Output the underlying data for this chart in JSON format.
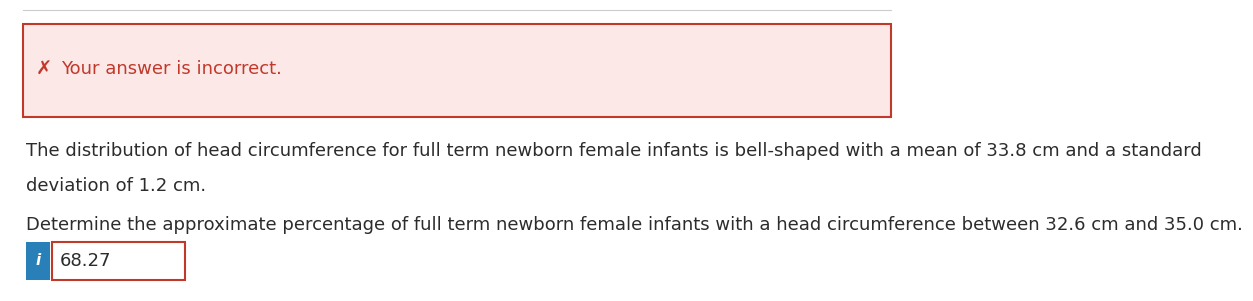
{
  "error_box_bg": "#fde8e8",
  "error_box_border": "#c0392b",
  "error_icon": "✗",
  "error_icon_color": "#c0392b",
  "error_text": "Your answer is incorrect.",
  "error_text_color": "#c0392b",
  "body_text_line1": "The distribution of head circumference for full term newborn female infants is bell-shaped with a mean of 33.8 cm and a standard",
  "body_text_line2": "deviation of 1.2 cm.",
  "question_text": "Determine the approximate percentage of full term newborn female infants with a head circumference between 32.6 cm and 35.0 cm.",
  "answer_value": "68.27",
  "answer_box_border": "#c0392b",
  "info_box_bg": "#2980b9",
  "info_icon": "i",
  "background_color": "#ffffff",
  "body_text_color": "#2c2c2c",
  "top_border_color": "#cccccc",
  "font_size_body": 13,
  "font_size_error": 13,
  "font_size_answer": 13
}
